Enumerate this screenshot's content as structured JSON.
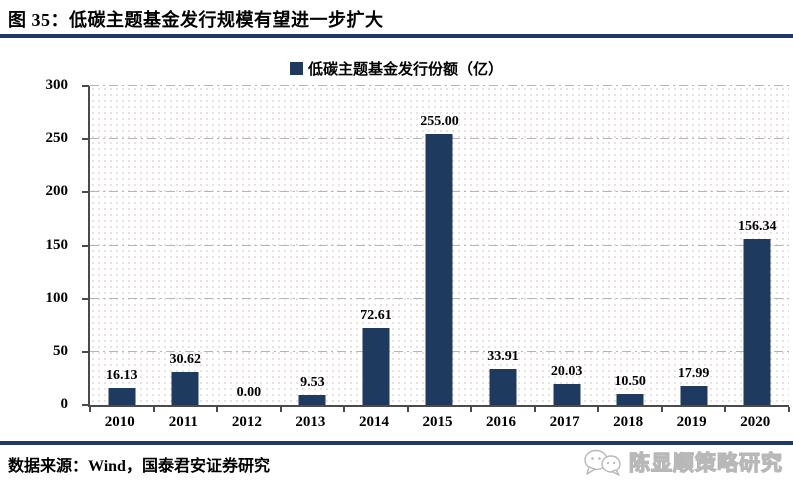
{
  "figure": {
    "title": "图 35：低碳主题基金发行规模有望进一步扩大",
    "source_note": "数据来源：Wind，国泰君安证券研究",
    "watermark_text": "陈显顺策略研究",
    "colors": {
      "bar": "#1f3a5f",
      "rule": "#1f3864",
      "gridline": "#b5b5b5",
      "axis": "#4a4a4a",
      "watermark": "#b8b8b8"
    }
  },
  "chart_data": {
    "type": "bar",
    "title": "",
    "xlabel": "",
    "ylabel": "",
    "legend": [
      "低碳主题基金发行份额（亿）"
    ],
    "legend_position": "top-center",
    "categories": [
      "2010",
      "2011",
      "2012",
      "2013",
      "2014",
      "2015",
      "2016",
      "2017",
      "2018",
      "2019",
      "2020"
    ],
    "values": [
      16.13,
      30.62,
      0.0,
      9.53,
      72.61,
      255.0,
      33.91,
      20.03,
      10.5,
      17.99,
      156.34
    ],
    "value_labels": [
      "16.13",
      "30.62",
      "0.00",
      "9.53",
      "72.61",
      "255.00",
      "33.91",
      "20.03",
      "10.50",
      "17.99",
      "156.34"
    ],
    "ylim": [
      0,
      300
    ],
    "yticks": [
      0,
      50,
      100,
      150,
      200,
      250,
      300
    ],
    "grid": "horizontal-dash-dot",
    "plot_background": "white-with-light-dots",
    "bar_color": "#1f3a5f"
  }
}
